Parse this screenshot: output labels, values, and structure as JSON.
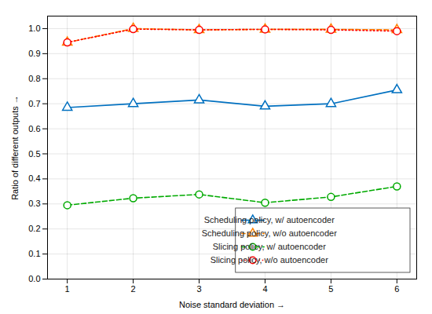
{
  "chart_data": {
    "type": "line",
    "x_label": "Noise standard deviation",
    "y_label": "Ratio of different outputs",
    "x": [
      1,
      2,
      3,
      4,
      5,
      6
    ],
    "series": [
      {
        "name": "Scheduling policy, w/ autoencoder",
        "color": "#0070C0",
        "marker": "triangle",
        "line_style": "solid",
        "values": [
          0.685,
          0.7,
          0.715,
          0.69,
          0.7,
          0.755
        ]
      },
      {
        "name": "Scheduling policy, w/o autoencoder",
        "color": "#FF8000",
        "marker": "triangle",
        "line_style": "dashed",
        "values": [
          0.945,
          1.0,
          0.995,
          0.997,
          0.997,
          0.995
        ]
      },
      {
        "name": "Slicing policy, w/ autoencoder",
        "color": "#00AA00",
        "marker": "circle",
        "line_style": "dashed",
        "values": [
          0.295,
          0.323,
          0.338,
          0.305,
          0.328,
          0.37
        ]
      },
      {
        "name": "Slicing policy, w/o autoencoder",
        "color": "#FF0000",
        "marker": "circle",
        "line_style": "dotted",
        "values": [
          0.945,
          0.998,
          0.995,
          0.997,
          0.995,
          0.99
        ]
      }
    ],
    "xlim": [
      0.7,
      6.3
    ],
    "xticks": [
      1,
      2,
      3,
      4,
      5,
      6
    ],
    "ylim": [
      0,
      1.05
    ],
    "yticks": [
      {
        "value": 0,
        "label": "0.0"
      },
      0.1,
      0.2,
      0.3,
      0.4,
      0.5,
      0.6,
      0.7,
      0.8,
      0.9,
      {
        "value": 1.0,
        "label": "1.0"
      }
    ],
    "grid": true,
    "legend": "lower right"
  }
}
